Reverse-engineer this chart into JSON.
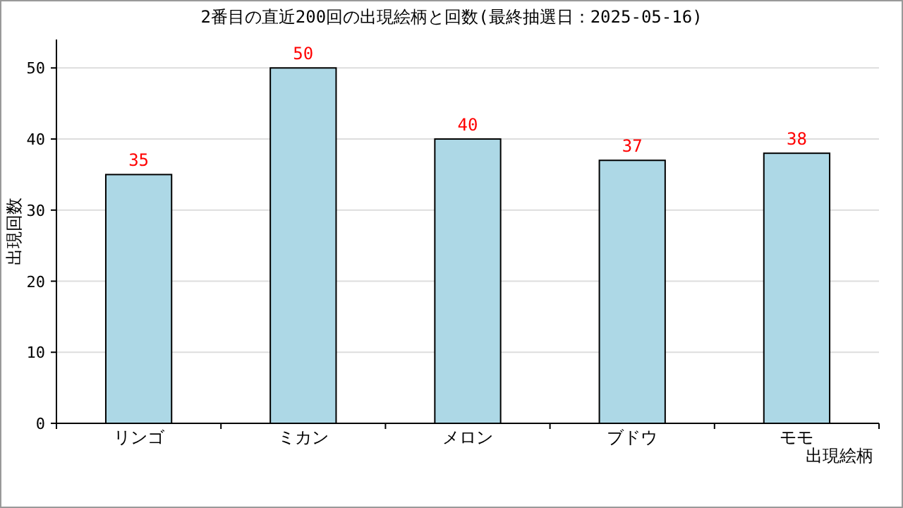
{
  "chart_data": {
    "type": "bar",
    "title": "2番目の直近200回の出現絵柄と回数(最終抽選日：2025-05-16)",
    "xlabel": "出現絵柄",
    "ylabel": "出現回数",
    "categories": [
      "リンゴ",
      "ミカン",
      "メロン",
      "ブドウ",
      "モモ"
    ],
    "values": [
      35,
      50,
      40,
      37,
      38
    ],
    "color": "#add8e6",
    "ylim": [
      0,
      54
    ],
    "yticks": [
      0,
      10,
      20,
      30,
      40,
      50
    ],
    "grid": "y",
    "data_labels": true
  }
}
